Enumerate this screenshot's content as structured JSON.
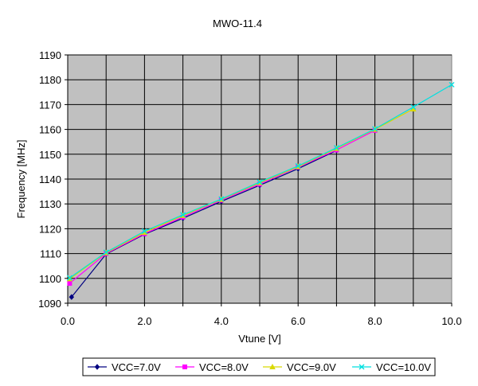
{
  "chart_data": {
    "type": "line",
    "title": "MWO-11.4",
    "xlabel": "Vtune [V]",
    "ylabel": "Frequency [MHz]",
    "xlim": [
      0,
      10
    ],
    "ylim": [
      1090,
      1190
    ],
    "x_ticks": [
      0,
      2,
      4,
      6,
      8,
      10
    ],
    "x_tick_labels": [
      "0.0",
      "2.0",
      "4.0",
      "6.0",
      "8.0",
      "10.0"
    ],
    "y_ticks": [
      1090,
      1100,
      1110,
      1120,
      1130,
      1140,
      1150,
      1160,
      1170,
      1180,
      1190
    ],
    "y_tick_labels": [
      "1090",
      "1100",
      "1110",
      "1120",
      "1130",
      "1140",
      "1150",
      "1160",
      "1170",
      "1180",
      "1190"
    ],
    "grid": true,
    "plot_background": "#c0c0c0",
    "legend_position": "bottom",
    "series": [
      {
        "name": "VCC=7.0V",
        "color": "#000080",
        "marker": "diamond",
        "points": [
          [
            0.1,
            1092.5
          ],
          [
            1.0,
            1109.8
          ],
          [
            2.0,
            1117.8
          ],
          [
            3.0,
            1124.2
          ],
          [
            4.0,
            1131.0
          ],
          [
            5.0,
            1137.5
          ],
          [
            6.0,
            1144.2
          ],
          [
            7.0,
            1151.5
          ]
        ]
      },
      {
        "name": "VCC=8.0V",
        "color": "#ff00ff",
        "marker": "square",
        "points": [
          [
            0.05,
            1098.0
          ],
          [
            1.0,
            1110.0
          ],
          [
            2.0,
            1118.0
          ],
          [
            3.0,
            1124.7
          ],
          [
            4.0,
            1131.5
          ],
          [
            5.0,
            1138.0
          ],
          [
            6.0,
            1144.8
          ],
          [
            7.0,
            1151.7
          ],
          [
            8.0,
            1159.6
          ]
        ]
      },
      {
        "name": "VCC=9.0V",
        "color": "#d9d900",
        "marker": "triangle",
        "points": [
          [
            0.05,
            1099.8
          ],
          [
            1.0,
            1110.3
          ],
          [
            2.0,
            1118.5
          ],
          [
            3.0,
            1125.3
          ],
          [
            4.0,
            1131.8
          ],
          [
            5.0,
            1138.5
          ],
          [
            6.0,
            1145.0
          ],
          [
            7.0,
            1152.3
          ],
          [
            8.0,
            1160.0
          ],
          [
            9.0,
            1168.2
          ]
        ]
      },
      {
        "name": "VCC=10.0V",
        "color": "#00e0e0",
        "marker": "x",
        "points": [
          [
            0.05,
            1100.2
          ],
          [
            1.0,
            1110.5
          ],
          [
            2.0,
            1119.0
          ],
          [
            3.0,
            1125.6
          ],
          [
            4.0,
            1132.0
          ],
          [
            5.0,
            1138.8
          ],
          [
            6.0,
            1145.3
          ],
          [
            7.0,
            1152.6
          ],
          [
            8.0,
            1160.2
          ],
          [
            9.0,
            1169.0
          ],
          [
            10.0,
            1178.0
          ]
        ]
      }
    ]
  }
}
